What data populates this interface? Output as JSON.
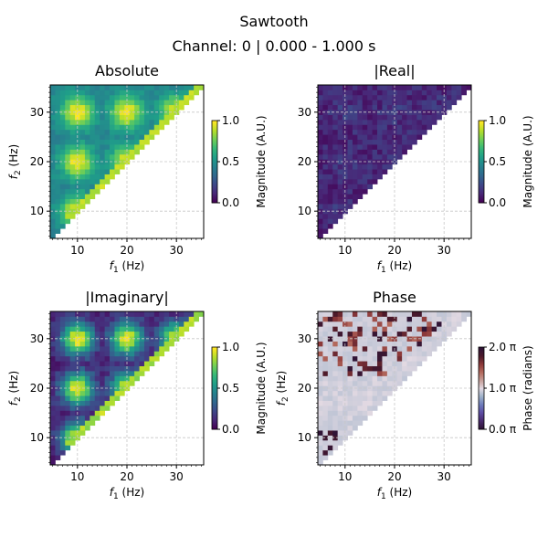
{
  "figure": {
    "title": "Sawtooth",
    "subtitle": "Channel: 0 | 0.000 - 1.000 s"
  },
  "colormaps": {
    "viridis": [
      "#440154",
      "#482878",
      "#3e4989",
      "#31688e",
      "#26828e",
      "#1f9e89",
      "#35b779",
      "#6ece58",
      "#b5de2b",
      "#fde725"
    ],
    "twilight_shifted": [
      "#2f1436",
      "#4a2a6e",
      "#5d4da4",
      "#6e7cbb",
      "#9eb2c9",
      "#e2d9e2",
      "#c7a09a",
      "#b46a5e",
      "#8e3a3a",
      "#4d1a2a",
      "#2f1436"
    ],
    "grid_color": "#c8c8c8"
  },
  "chart_data": [
    {
      "type": "heatmap",
      "title": "Absolute",
      "xlabel": "f",
      "xlabel_sub": "1",
      "xlabel_unit": " (Hz)",
      "ylabel": "f",
      "ylabel_sub": "2",
      "ylabel_unit": " (Hz)",
      "xlim": [
        4.5,
        35.5
      ],
      "ylim": [
        4.5,
        35.5
      ],
      "xticks": [
        10,
        20,
        30
      ],
      "yticks": [
        10,
        20,
        30
      ],
      "grid": true,
      "colormap": "viridis",
      "pattern": "abs",
      "colorbar": {
        "label": "Magnitude (A.U.)",
        "range": [
          0,
          1
        ],
        "ticks": [
          0,
          0.5,
          1
        ],
        "tick_labels": [
          "0.0",
          "0.5",
          "1.0"
        ]
      }
    },
    {
      "type": "heatmap",
      "title": "|Real|",
      "xlabel": "f",
      "xlabel_sub": "1",
      "xlabel_unit": " (Hz)",
      "ylabel": "",
      "ylabel_sub": "",
      "ylabel_unit": "",
      "xlim": [
        4.5,
        35.5
      ],
      "ylim": [
        4.5,
        35.5
      ],
      "xticks": [
        10,
        20,
        30
      ],
      "yticks": [
        10,
        20,
        30
      ],
      "grid": true,
      "colormap": "viridis",
      "pattern": "real",
      "colorbar": {
        "label": "Magnitude (A.U.)",
        "range": [
          0,
          1
        ],
        "ticks": [
          0,
          0.5,
          1
        ],
        "tick_labels": [
          "0.0",
          "0.5",
          "1.0"
        ]
      }
    },
    {
      "type": "heatmap",
      "title": "|Imaginary|",
      "xlabel": "f",
      "xlabel_sub": "1",
      "xlabel_unit": " (Hz)",
      "ylabel": "f",
      "ylabel_sub": "2",
      "ylabel_unit": " (Hz)",
      "xlim": [
        4.5,
        35.5
      ],
      "ylim": [
        4.5,
        35.5
      ],
      "xticks": [
        10,
        20,
        30
      ],
      "yticks": [
        10,
        20,
        30
      ],
      "grid": true,
      "colormap": "viridis",
      "pattern": "imag",
      "colorbar": {
        "label": "Magnitude (A.U.)",
        "range": [
          0,
          1
        ],
        "ticks": [
          0,
          0.5,
          1
        ],
        "tick_labels": [
          "0.0",
          "0.5",
          "1.0"
        ]
      }
    },
    {
      "type": "heatmap",
      "title": "Phase",
      "xlabel": "f",
      "xlabel_sub": "1",
      "xlabel_unit": " (Hz)",
      "ylabel": "f",
      "ylabel_sub": "2",
      "ylabel_unit": " (Hz)",
      "xlim": [
        4.5,
        35.5
      ],
      "ylim": [
        4.5,
        35.5
      ],
      "xticks": [
        10,
        20,
        30
      ],
      "yticks": [
        10,
        20,
        30
      ],
      "grid": true,
      "colormap": "twilight_shifted",
      "pattern": "phase",
      "colorbar": {
        "label": "Phase (radians)",
        "range": [
          0,
          2
        ],
        "ticks": [
          0,
          1,
          2
        ],
        "tick_labels": [
          "0.0 π",
          "1.0 π",
          "2.0 π"
        ]
      }
    }
  ]
}
